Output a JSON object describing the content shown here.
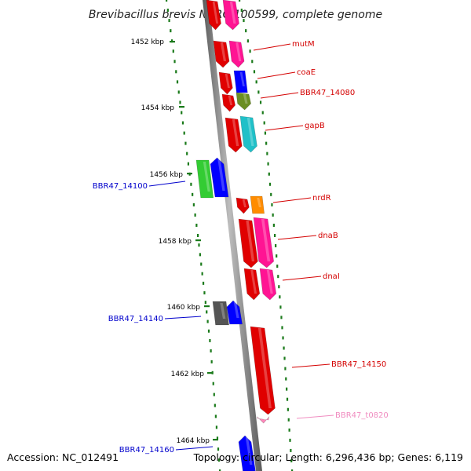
{
  "title": "Brevibacillus brevis NBRC 100599, complete genome",
  "footer": {
    "accession": "Accession: NC_012491",
    "summary": "Topology: circular; Length: 6,296,436 bp; Genes: 6,119"
  },
  "kbp_labels": [
    "1452 kbp",
    "1454 kbp",
    "1456 kbp",
    "1458 kbp",
    "1460 kbp",
    "1462 kbp",
    "1464 kbp"
  ],
  "genes": [
    {
      "name": "mutM",
      "color": "#d40000"
    },
    {
      "name": "coaE",
      "color": "#d40000"
    },
    {
      "name": "BBR47_14080",
      "color": "#d40000"
    },
    {
      "name": "gapB",
      "color": "#d40000"
    },
    {
      "name": "BBR47_14100",
      "color": "#0000cc"
    },
    {
      "name": "nrdR",
      "color": "#d40000"
    },
    {
      "name": "dnaB",
      "color": "#d40000"
    },
    {
      "name": "dnaI",
      "color": "#d40000"
    },
    {
      "name": "BBR47_14140",
      "color": "#0000cc"
    },
    {
      "name": "BBR47_14150",
      "color": "#d40000"
    },
    {
      "name": "BBR47_t0820",
      "color": "#f08cc0"
    },
    {
      "name": "BBR47_14160",
      "color": "#0000cc"
    }
  ],
  "colors": {
    "red": "#e00000",
    "magenta": "#ff1493",
    "blue": "#0000ff",
    "olive": "#6b8e23",
    "cyan": "#20c0c8",
    "green": "#33cc33",
    "orange": "#ff8c00",
    "gray": "#555555",
    "pink": "#ff88bb",
    "backbone": "#888888",
    "tick": "#1a7a1a"
  }
}
